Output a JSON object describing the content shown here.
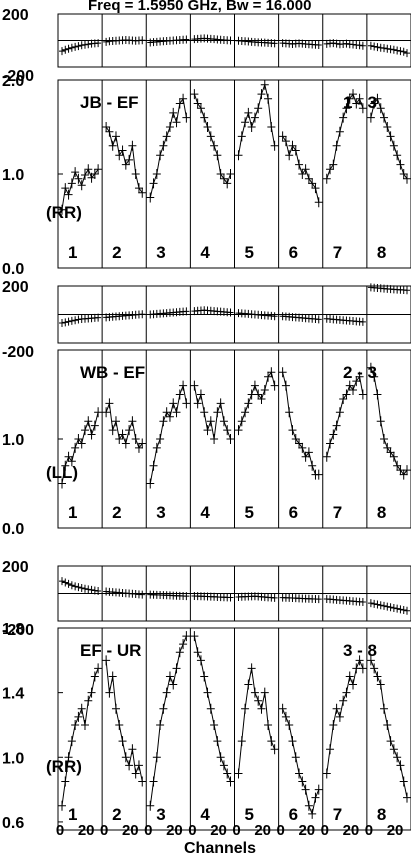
{
  "header": {
    "title_text": "Freq = 1.5950 GHz, Bw = 16.000"
  },
  "xaxis": {
    "label": "Channels",
    "tick_labels": [
      "0",
      "20",
      "0",
      "20",
      "0",
      "20",
      "0",
      "20",
      "0",
      "20",
      "0",
      "20",
      "0",
      "20",
      "0",
      "20"
    ]
  },
  "colors": {
    "ink": "#000000",
    "background": "#ffffff"
  },
  "chart_data": [
    {
      "type": "line",
      "baseline": "JB - EF",
      "polarization": "(RR)",
      "ifs": [
        "1",
        "2",
        "3",
        "4",
        "5",
        "6",
        "7",
        "8"
      ],
      "amp_ylim": [
        0.0,
        2.0
      ],
      "amp_yticks": [
        "2.0",
        "1.0",
        "0.0"
      ],
      "phase_yticks": [
        "200",
        "-200"
      ],
      "series": [
        {
          "if": "1",
          "phase": [
            -80,
            -70,
            -62,
            -55,
            -48,
            -42,
            -36,
            -32,
            -28,
            -24,
            -22,
            -20
          ],
          "amp": [
            0.62,
            0.85,
            0.78,
            0.9,
            1.02,
            0.95,
            0.88,
            0.99,
            1.05,
            0.96,
            1.0,
            1.05
          ]
        },
        {
          "if": "2",
          "phase": [
            -10,
            -6,
            -4,
            -2,
            0,
            2,
            4,
            2,
            0,
            -2,
            0,
            2
          ],
          "amp": [
            1.5,
            1.45,
            1.3,
            1.4,
            1.2,
            1.25,
            1.1,
            1.15,
            1.3,
            1.0,
            0.85,
            0.8
          ]
        },
        {
          "if": "3",
          "phase": [
            -15,
            -12,
            -10,
            -8,
            -6,
            -4,
            -2,
            0,
            2,
            4,
            6,
            8
          ],
          "amp": [
            0.75,
            0.9,
            1.0,
            1.2,
            1.3,
            1.4,
            1.5,
            1.65,
            1.55,
            1.75,
            1.8,
            1.6
          ]
        },
        {
          "if": "4",
          "phase": [
            10,
            12,
            14,
            16,
            14,
            12,
            10,
            8,
            6,
            4,
            2,
            0
          ],
          "amp": [
            1.85,
            1.75,
            1.7,
            1.6,
            1.5,
            1.4,
            1.3,
            1.2,
            1.0,
            0.95,
            0.9,
            1.0
          ]
        },
        {
          "if": "5",
          "phase": [
            -2,
            -4,
            -6,
            -8,
            -10,
            -12,
            -14,
            -15,
            -16,
            -18,
            -20,
            -22
          ],
          "amp": [
            1.2,
            1.4,
            1.55,
            1.65,
            1.5,
            1.6,
            1.7,
            1.85,
            1.95,
            1.8,
            1.5,
            1.3
          ]
        },
        {
          "if": "6",
          "phase": [
            -20,
            -22,
            -24,
            -26,
            -24,
            -22,
            -24,
            -26,
            -28,
            -30,
            -32,
            -34
          ],
          "amp": [
            1.4,
            1.35,
            1.2,
            1.3,
            1.25,
            1.1,
            1.0,
            1.05,
            0.95,
            0.9,
            0.85,
            0.7
          ]
        },
        {
          "if": "7",
          "phase": [
            -25,
            -22,
            -20,
            -24,
            -28,
            -26,
            -24,
            -28,
            -30,
            -34,
            -36,
            -40
          ],
          "amp": [
            0.95,
            1.05,
            1.1,
            1.3,
            1.45,
            1.6,
            1.7,
            1.8,
            1.85,
            1.75,
            1.8,
            1.7
          ]
        },
        {
          "if": "8",
          "phase": [
            -40,
            -45,
            -50,
            -55,
            -58,
            -62,
            -66,
            -70,
            -75,
            -80,
            -85,
            -95
          ],
          "amp": [
            1.6,
            1.75,
            1.8,
            1.7,
            1.6,
            1.5,
            1.4,
            1.3,
            1.2,
            1.1,
            1.0,
            0.95
          ]
        }
      ],
      "annotation": "1 - 3"
    },
    {
      "type": "line",
      "baseline": "WB - EF",
      "polarization": "(LL)",
      "ifs": [
        "1",
        "2",
        "3",
        "4",
        "5",
        "6",
        "7",
        "8"
      ],
      "amp_ylim": [
        0.0,
        2.0
      ],
      "amp_yticks": [
        "1.0",
        "0.0"
      ],
      "phase_yticks": [
        "200",
        "-200"
      ],
      "series": [
        {
          "if": "1",
          "phase": [
            -60,
            -55,
            -50,
            -45,
            -40,
            -35,
            -32,
            -30,
            -28,
            -26,
            -24,
            -22
          ],
          "amp": [
            0.5,
            0.7,
            0.8,
            0.75,
            0.9,
            1.0,
            0.95,
            1.1,
            1.2,
            1.05,
            1.15,
            1.3
          ]
        },
        {
          "if": "2",
          "phase": [
            -20,
            -18,
            -16,
            -14,
            -12,
            -10,
            -8,
            -6,
            -4,
            -2,
            0,
            2
          ],
          "amp": [
            1.3,
            1.4,
            1.1,
            1.2,
            1.0,
            1.05,
            0.95,
            1.1,
            1.2,
            1.0,
            0.9,
            0.95
          ]
        },
        {
          "if": "3",
          "phase": [
            0,
            2,
            4,
            6,
            8,
            10,
            12,
            14,
            16,
            18,
            20,
            22
          ],
          "amp": [
            0.5,
            0.7,
            0.9,
            1.0,
            1.2,
            1.3,
            1.25,
            1.4,
            1.3,
            1.5,
            1.6,
            1.4
          ]
        },
        {
          "if": "4",
          "phase": [
            24,
            26,
            28,
            30,
            28,
            26,
            24,
            22,
            20,
            18,
            16,
            14
          ],
          "amp": [
            1.6,
            1.4,
            1.5,
            1.3,
            1.1,
            1.2,
            1.0,
            1.3,
            1.4,
            1.2,
            1.1,
            1.0
          ]
        },
        {
          "if": "5",
          "phase": [
            10,
            8,
            6,
            4,
            2,
            0,
            -2,
            -4,
            -6,
            -8,
            -10,
            -12
          ],
          "amp": [
            1.1,
            1.2,
            1.3,
            1.4,
            1.5,
            1.6,
            1.5,
            1.45,
            1.55,
            1.7,
            1.75,
            1.6
          ]
        },
        {
          "if": "6",
          "phase": [
            -12,
            -14,
            -16,
            -18,
            -20,
            -22,
            -24,
            -26,
            -28,
            -30,
            -32,
            -34
          ],
          "amp": [
            1.75,
            1.6,
            1.3,
            1.1,
            1.0,
            0.95,
            0.9,
            0.8,
            0.85,
            0.7,
            0.6,
            0.6
          ]
        },
        {
          "if": "7",
          "phase": [
            -30,
            -32,
            -34,
            -36,
            -38,
            -40,
            -42,
            -44,
            -46,
            -48,
            -50,
            -52
          ],
          "amp": [
            0.8,
            0.95,
            1.05,
            1.15,
            1.3,
            1.45,
            1.5,
            1.6,
            1.55,
            1.65,
            1.7,
            1.5
          ]
        },
        {
          "if": "8",
          "phase": [
            190,
            188,
            186,
            184,
            182,
            180,
            178,
            176,
            175,
            174,
            172,
            170
          ],
          "amp": [
            1.8,
            1.7,
            1.5,
            1.2,
            1.0,
            0.9,
            0.85,
            0.8,
            0.7,
            0.65,
            0.6,
            0.65
          ]
        }
      ],
      "annotation": "2 - 3"
    },
    {
      "type": "line",
      "baseline": "EF - UR",
      "polarization": "(RR)",
      "ifs": [
        "1",
        "2",
        "3",
        "4",
        "5",
        "6",
        "7",
        "8"
      ],
      "amp_ylim": [
        0.55,
        1.8
      ],
      "amp_yticks": [
        "1.8",
        "1.4",
        "1.0",
        "0.6"
      ],
      "phase_yticks": [
        "200",
        "-200"
      ],
      "series": [
        {
          "if": "1",
          "phase": [
            90,
            80,
            70,
            60,
            52,
            46,
            40,
            35,
            30,
            26,
            22,
            18
          ],
          "amp": [
            0.7,
            0.85,
            1.0,
            1.1,
            1.2,
            1.25,
            1.3,
            1.2,
            1.35,
            1.4,
            1.5,
            1.55
          ]
        },
        {
          "if": "2",
          "phase": [
            15,
            12,
            10,
            8,
            6,
            4,
            2,
            0,
            -2,
            -4,
            -6,
            -8
          ],
          "amp": [
            1.6,
            1.4,
            1.5,
            1.3,
            1.2,
            1.1,
            1.0,
            0.95,
            1.05,
            0.9,
            0.95,
            0.85
          ]
        },
        {
          "if": "3",
          "phase": [
            -8,
            -9,
            -10,
            -11,
            -12,
            -13,
            -14,
            -15,
            -16,
            -17,
            -18,
            -19
          ],
          "amp": [
            0.7,
            0.85,
            1.0,
            1.2,
            1.3,
            1.4,
            1.5,
            1.45,
            1.55,
            1.65,
            1.7,
            1.75
          ]
        },
        {
          "if": "4",
          "phase": [
            -18,
            -19,
            -20,
            -21,
            -22,
            -23,
            -24,
            -25,
            -26,
            -27,
            -28,
            -29
          ],
          "amp": [
            1.75,
            1.65,
            1.6,
            1.5,
            1.4,
            1.3,
            1.2,
            1.1,
            1.0,
            0.95,
            0.9,
            0.85
          ]
        },
        {
          "if": "5",
          "phase": [
            -25,
            -24,
            -23,
            -22,
            -21,
            -20,
            -22,
            -24,
            -26,
            -28,
            -30,
            -32
          ],
          "amp": [
            0.9,
            1.1,
            1.3,
            1.45,
            1.55,
            1.4,
            1.35,
            1.3,
            1.4,
            1.2,
            1.1,
            1.05
          ]
        },
        {
          "if": "6",
          "phase": [
            -30,
            -31,
            -32,
            -33,
            -34,
            -35,
            -36,
            -37,
            -38,
            -39,
            -40,
            -41
          ],
          "amp": [
            1.3,
            1.25,
            1.2,
            1.1,
            1.0,
            0.9,
            0.85,
            0.8,
            0.7,
            0.65,
            0.75,
            0.8
          ]
        },
        {
          "if": "7",
          "phase": [
            -40,
            -42,
            -44,
            -46,
            -48,
            -50,
            -52,
            -54,
            -56,
            -58,
            -60,
            -62
          ],
          "amp": [
            0.9,
            1.05,
            1.2,
            1.3,
            1.25,
            1.35,
            1.4,
            1.5,
            1.45,
            1.55,
            1.6,
            1.55
          ]
        },
        {
          "if": "8",
          "phase": [
            -70,
            -75,
            -80,
            -85,
            -90,
            -95,
            -100,
            -105,
            -110,
            -115,
            -120,
            -125
          ],
          "amp": [
            1.6,
            1.55,
            1.5,
            1.45,
            1.3,
            1.2,
            1.1,
            1.05,
            1.0,
            0.95,
            0.85,
            0.75
          ]
        }
      ],
      "annotation": "3 - 8"
    }
  ]
}
